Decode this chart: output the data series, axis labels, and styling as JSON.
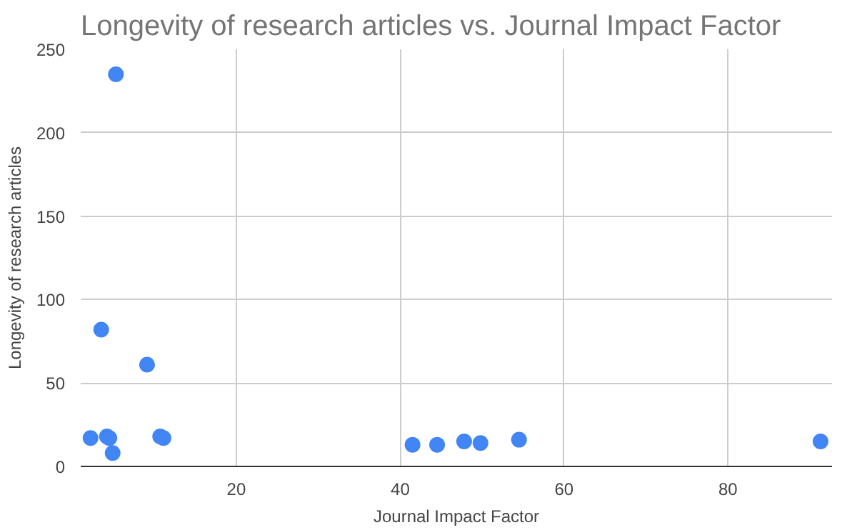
{
  "chart_data": {
    "type": "scatter",
    "title": "Longevity of research articles vs. Journal Impact Factor",
    "xlabel": "Journal Impact Factor",
    "ylabel": "Longevity of research articles",
    "x": [
      2.2,
      3.5,
      4.2,
      4.5,
      4.9,
      5.3,
      9.1,
      10.7,
      11.1,
      41.5,
      44.5,
      47.8,
      49.8,
      54.5,
      91.3
    ],
    "values": [
      17,
      82,
      18,
      17,
      8,
      235,
      61,
      18,
      17,
      13,
      13,
      15,
      14,
      16,
      15
    ],
    "color": "#4285f4",
    "marker": "circle",
    "xlim": [
      1,
      92.7
    ],
    "ylim": [
      0,
      250
    ],
    "xticks": [
      20,
      40,
      60,
      80
    ],
    "yticks": [
      0,
      50,
      100,
      150,
      200,
      250
    ],
    "grid": true
  }
}
